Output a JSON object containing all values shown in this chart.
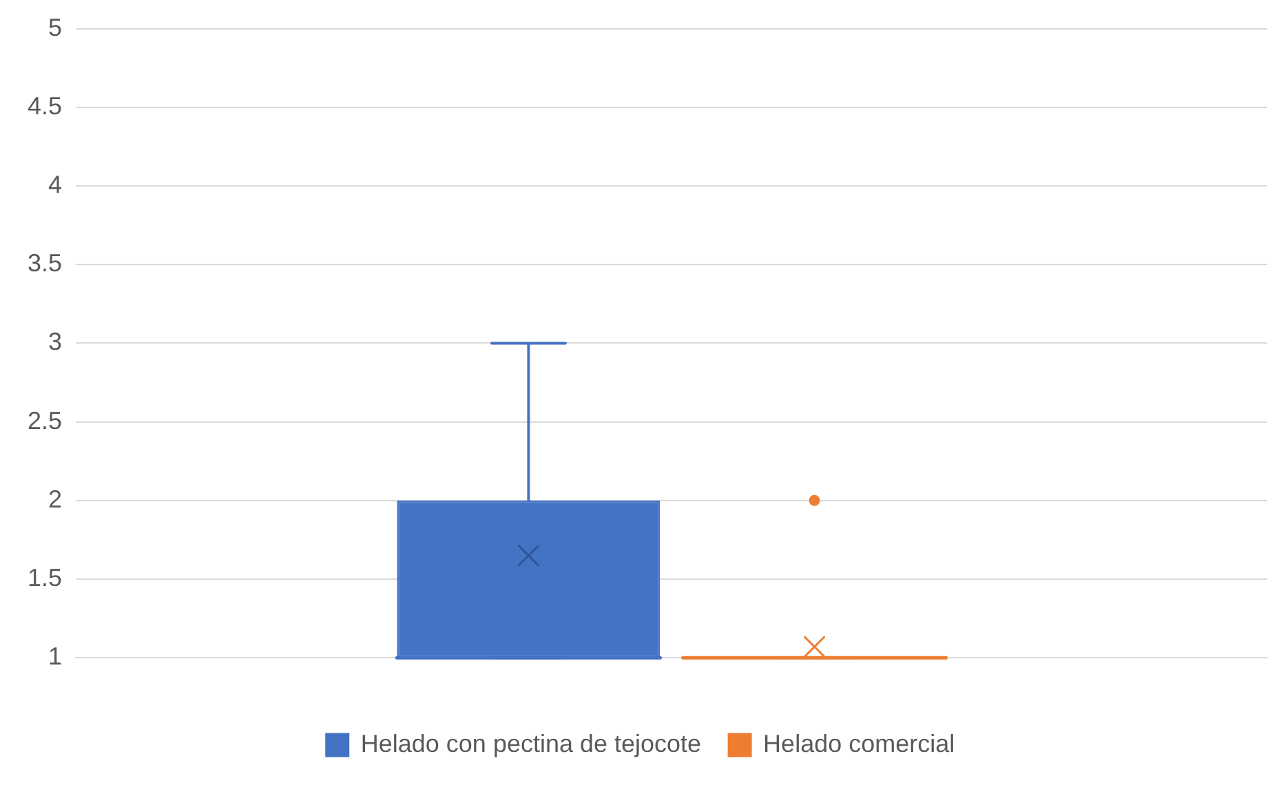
{
  "chart_data": {
    "type": "box",
    "categories": [
      null
    ],
    "series": [
      {
        "name": "Helado con pectina de tejocote",
        "color": "#4472c4",
        "boxes": [
          {
            "low": 1,
            "q1": 1,
            "median": 1,
            "q3": 2,
            "high": 3,
            "mean": 1.65
          }
        ]
      },
      {
        "name": "Helado comercial",
        "color": "#ed7d31",
        "boxes": [
          {
            "low": 1,
            "q1": 1,
            "median": 1,
            "q3": 1,
            "high": 1,
            "mean": 1.07,
            "outliers": [
              2
            ]
          }
        ]
      }
    ],
    "ylim": [
      1,
      5
    ],
    "yticks": [
      1,
      1.5,
      2,
      2.5,
      3,
      3.5,
      4,
      4.5,
      5
    ],
    "grid": "y",
    "legend": "bottom"
  }
}
